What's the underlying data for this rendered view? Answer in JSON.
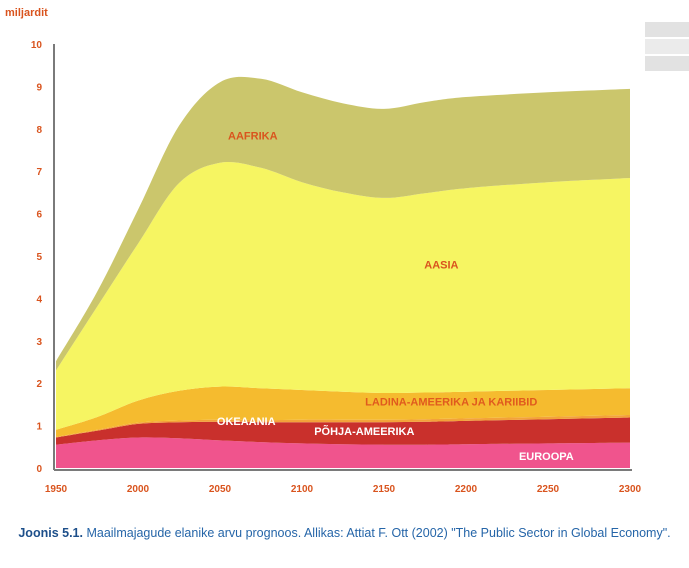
{
  "chart_data": {
    "type": "area",
    "stacked": true,
    "title": "",
    "xlabel": "",
    "ylabel": "miljardit",
    "xlim": [
      1950,
      2300
    ],
    "ylim": [
      0,
      10
    ],
    "x_ticks": [
      "1950",
      "2000",
      "2050",
      "2100",
      "2150",
      "2200",
      "2250",
      "2300"
    ],
    "y_ticks": [
      "0",
      "1",
      "2",
      "3",
      "4",
      "5",
      "6",
      "7",
      "8",
      "9",
      "10"
    ],
    "grid": false,
    "legend": "none",
    "x": [
      1950,
      1975,
      2000,
      2025,
      2050,
      2075,
      2100,
      2125,
      2150,
      2175,
      2200,
      2250,
      2300
    ],
    "series": [
      {
        "name": "EUROOPA",
        "color": "#f0548d",
        "values": [
          0.55,
          0.65,
          0.72,
          0.7,
          0.65,
          0.61,
          0.58,
          0.56,
          0.55,
          0.55,
          0.56,
          0.58,
          0.6
        ]
      },
      {
        "name": "PÕHJA-AMEERIKA",
        "color": "#c9302c",
        "values": [
          0.17,
          0.23,
          0.32,
          0.38,
          0.44,
          0.47,
          0.5,
          0.52,
          0.53,
          0.54,
          0.55,
          0.57,
          0.59
        ]
      },
      {
        "name": "OKEAANIA",
        "color": "#f3a23a",
        "values": [
          0.01,
          0.02,
          0.03,
          0.04,
          0.05,
          0.05,
          0.06,
          0.06,
          0.06,
          0.06,
          0.06,
          0.06,
          0.06
        ]
      },
      {
        "name": "LADINA-AMEERIKA JA KARIIBID",
        "color": "#f5bb2f",
        "values": [
          0.17,
          0.3,
          0.52,
          0.7,
          0.78,
          0.75,
          0.7,
          0.66,
          0.63,
          0.63,
          0.63,
          0.63,
          0.63
        ]
      },
      {
        "name": "AASIA",
        "color": "#f6f562",
        "values": [
          1.4,
          2.6,
          3.7,
          4.9,
          5.28,
          5.2,
          4.9,
          4.7,
          4.6,
          4.7,
          4.8,
          4.9,
          4.96
        ]
      },
      {
        "name": "AAFRIKA",
        "color": "#cbc66c",
        "values": [
          0.22,
          0.35,
          0.8,
          1.35,
          1.9,
          2.1,
          2.12,
          2.1,
          2.1,
          2.15,
          2.15,
          2.12,
          2.1
        ]
      }
    ]
  },
  "caption": {
    "lead": "Joonis 5.1.",
    "text": "Maailmajagude elanike arvu prognoos. Allikas: Attiat F. Ott (2002) \"The Public Sector in Global Economy\"."
  }
}
